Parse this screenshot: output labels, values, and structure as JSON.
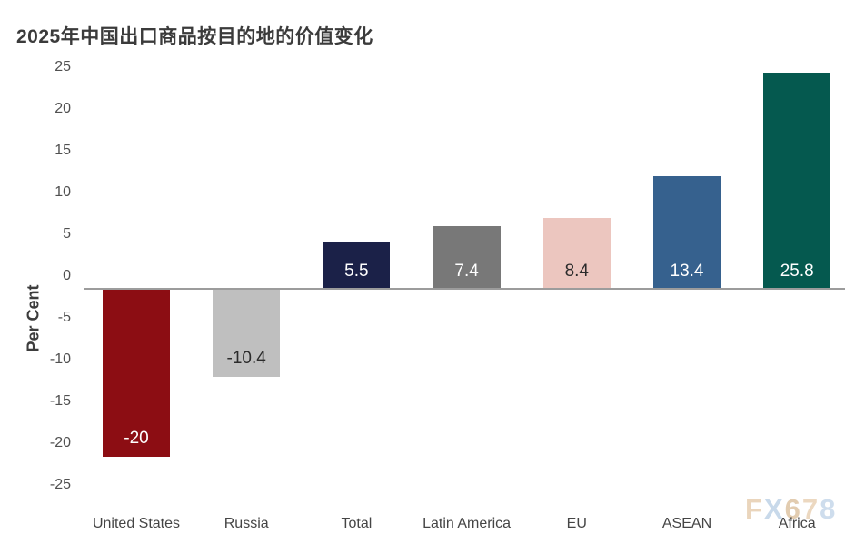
{
  "title": "2025年中国出口商品按目的地的价值变化",
  "chart_data": {
    "type": "bar",
    "categories": [
      "United States",
      "Russia",
      "Total",
      "Latin America",
      "EU",
      "ASEAN",
      "Africa"
    ],
    "values": [
      -20,
      -10.4,
      5.5,
      7.4,
      8.4,
      13.4,
      25.8
    ],
    "value_labels": [
      "-20",
      "-10.4",
      "5.5",
      "7.4",
      "8.4",
      "13.4",
      "25.8"
    ],
    "bar_colors": [
      "#8c0d13",
      "#bfbfbf",
      "#1b2148",
      "#787878",
      "#ecc6bf",
      "#36618e",
      "#05594f"
    ],
    "value_label_colors": [
      "#ffffff",
      "#2b2b2b",
      "#ffffff",
      "#ffffff",
      "#2b2b2b",
      "#ffffff",
      "#ffffff"
    ],
    "title": "2025年中国出口商品按目的地的价值变化",
    "xlabel": "",
    "ylabel": "Per Cent",
    "yticks": [
      "25",
      "20",
      "15",
      "10",
      "5",
      "0",
      "-5",
      "-10",
      "-15",
      "-20",
      "-25"
    ],
    "ylim": [
      -25,
      25
    ],
    "grid": false,
    "legend": "none",
    "axis_line_color": "#9c9c9c"
  },
  "watermark": {
    "text": "FX678",
    "letters": [
      "F",
      "X",
      "6",
      "7",
      "8"
    ],
    "letter_colors": [
      "#ead5bc",
      "#c8d9ea",
      "#e2ccb0",
      "#ecd8c0",
      "#cedded"
    ]
  }
}
